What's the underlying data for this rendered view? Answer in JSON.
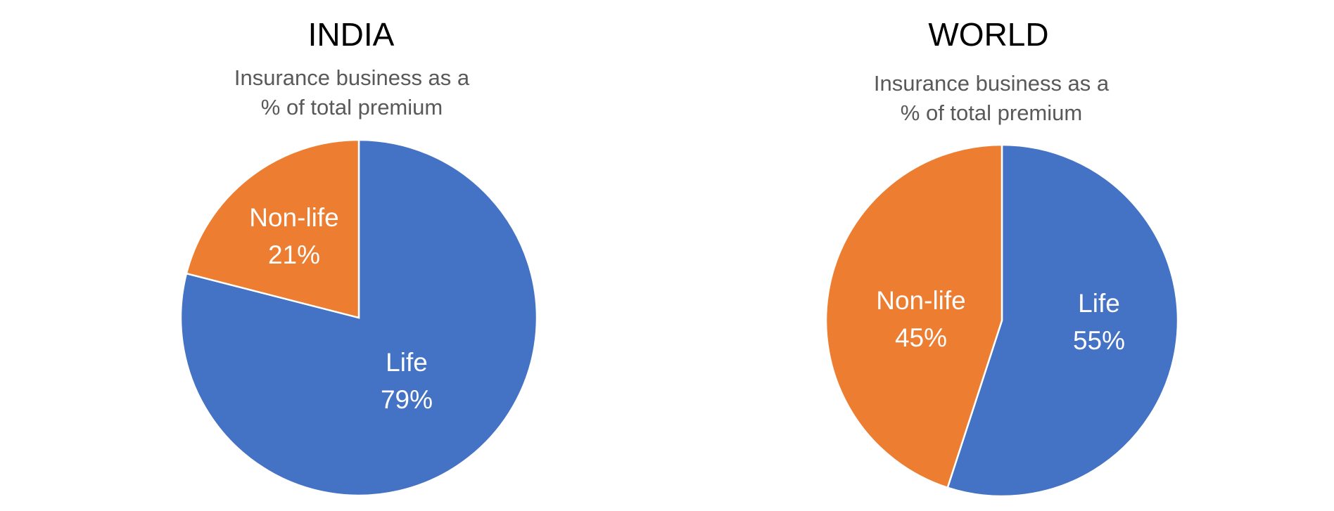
{
  "chart_data": [
    {
      "type": "pie",
      "title": "INDIA",
      "subtitle": [
        "Insurance business as a",
        "% of total premium"
      ],
      "slices": [
        {
          "label": "Life",
          "value": 79,
          "value_text": "79%",
          "color": "#4472C4"
        },
        {
          "label": "Non-life",
          "value": 21,
          "value_text": "21%",
          "color": "#ED7D31"
        }
      ]
    },
    {
      "type": "pie",
      "title": "WORLD",
      "subtitle": [
        "Insurance business as a",
        "% of total premium"
      ],
      "slices": [
        {
          "label": "Life",
          "value": 55,
          "value_text": "55%",
          "color": "#4472C4"
        },
        {
          "label": "Non-life",
          "value": 45,
          "value_text": "45%",
          "color": "#ED7D31"
        }
      ]
    }
  ]
}
